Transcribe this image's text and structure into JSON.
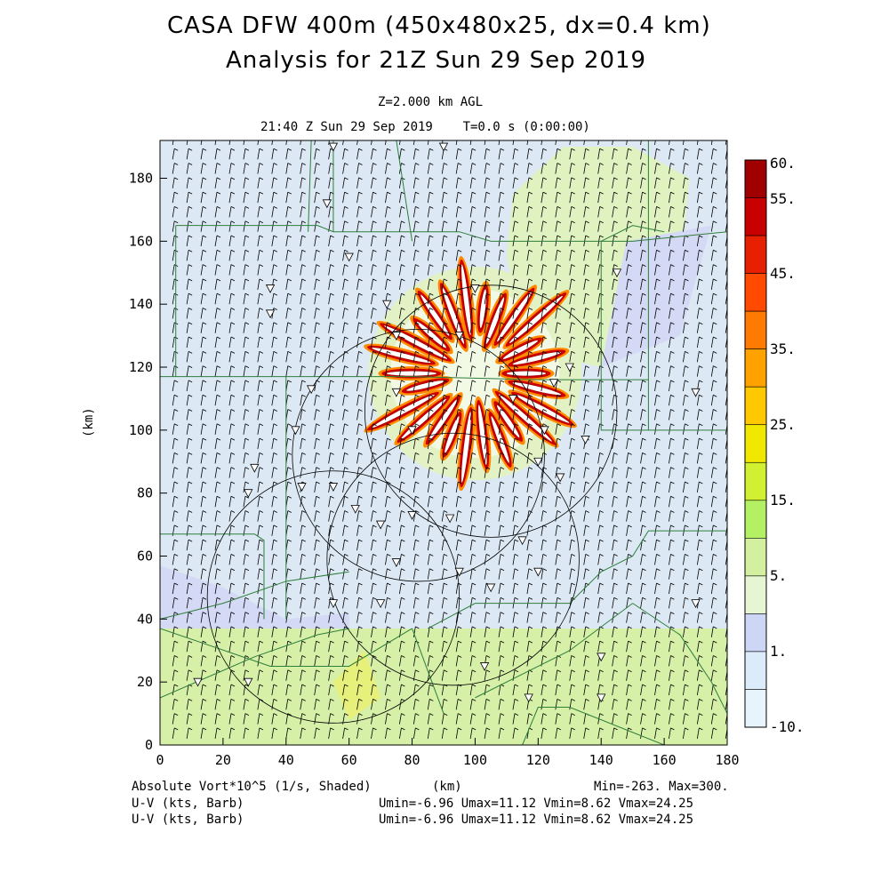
{
  "header": {
    "title_line1": "CASA DFW 400m (450x480x25, dx=0.4 km)",
    "title_line2": "Analysis for 21Z Sun 29 Sep 2019",
    "level": "Z=2.000 km AGL",
    "time": "21:40 Z Sun 29 Sep 2019    T=0.0 s (0:00:00)"
  },
  "footer": {
    "field": "Absolute Vort*10^5 (1/s, Shaded)",
    "xunit": "(km)",
    "minmax": "Min=-263. Max=300.",
    "barb1": "U-V (kts, Barb)",
    "barb1_stats": "Umin=-6.96 Umax=11.12 Vmin=8.62 Vmax=24.25",
    "barb2": "U-V (kts, Barb)",
    "barb2_stats": "Umin=-6.96 Umax=11.12 Vmin=8.62 Vmax=24.25"
  },
  "chart_data": {
    "type": "heatmap",
    "field": "Absolute Vorticity",
    "xlabel": "(km)",
    "ylabel": "(km)",
    "xlim": [
      0,
      180
    ],
    "ylim": [
      0,
      192
    ],
    "xticks": [
      0,
      20,
      40,
      60,
      80,
      100,
      120,
      140,
      160,
      180
    ],
    "yticks": [
      0,
      20,
      40,
      60,
      80,
      100,
      120,
      140,
      160,
      180
    ],
    "colorbar": {
      "labels": [
        "60.",
        "55.",
        "45.",
        "35.",
        "25.",
        "15.",
        "5.",
        "1.",
        "-10."
      ],
      "colors": [
        "#a00000",
        "#c80000",
        "#e62000",
        "#ff4a00",
        "#ff7a00",
        "#ffa200",
        "#ffc800",
        "#f0e800",
        "#d2f032",
        "#b4f064",
        "#d2f0a0",
        "#e6f5d2",
        "#cdd7f5",
        "#dcebfa",
        "#e8f4fc"
      ]
    },
    "min": -263,
    "max": 300,
    "background_value_range": [
      1,
      5
    ],
    "radar_circles": [
      {
        "cx": 105,
        "cy": 106,
        "r": 40
      },
      {
        "cx": 82,
        "cy": 92,
        "r": 40
      },
      {
        "cx": 55,
        "cy": 47,
        "r": 40
      },
      {
        "cx": 93,
        "cy": 59,
        "r": 40
      }
    ],
    "vortex_center": [
      100,
      118
    ],
    "grid": false,
    "legend": "right"
  }
}
